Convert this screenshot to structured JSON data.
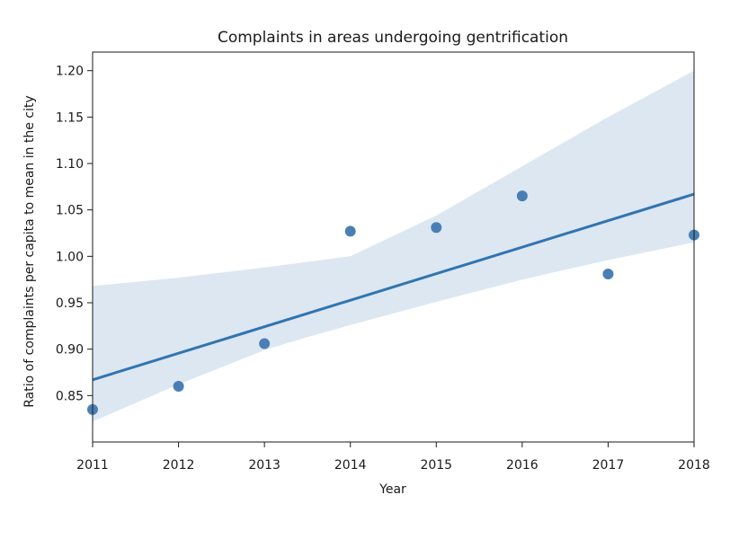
{
  "chart_data": {
    "type": "scatter",
    "title": "Complaints in areas undergoing gentrification",
    "xlabel": "Year",
    "ylabel": "Ratio of complaints per capita to mean in the city",
    "xlim": [
      2011,
      2018
    ],
    "ylim": [
      0.8,
      1.22
    ],
    "xticks": [
      "2011",
      "2012",
      "2013",
      "2014",
      "2015",
      "2016",
      "2017",
      "2018"
    ],
    "yticks": [
      "0.85",
      "0.90",
      "0.95",
      "1.00",
      "1.05",
      "1.10",
      "1.15",
      "1.20"
    ],
    "grid": false,
    "series": [
      {
        "x": [
          2011,
          2012,
          2013,
          2014,
          2015,
          2016,
          2017,
          2018
        ],
        "y": [
          0.835,
          0.86,
          0.906,
          1.027,
          1.031,
          1.065,
          0.981,
          1.023
        ]
      }
    ],
    "regression_line": {
      "x": [
        2011,
        2018
      ],
      "y": [
        0.867,
        1.067
      ]
    },
    "confidence_band": {
      "x": [
        2011,
        2012,
        2013,
        2013.5,
        2014,
        2015,
        2016,
        2017,
        2018
      ],
      "lower": [
        0.822,
        0.862,
        0.899,
        0.913,
        0.926,
        0.951,
        0.975,
        0.996,
        1.015
      ],
      "upper": [
        0.968,
        0.977,
        0.988,
        0.994,
        1.0,
        1.044,
        1.097,
        1.15,
        1.2
      ]
    },
    "colors": {
      "point": "#4a7fb5",
      "line": "#3274b0",
      "band": "#dce7f2"
    }
  }
}
